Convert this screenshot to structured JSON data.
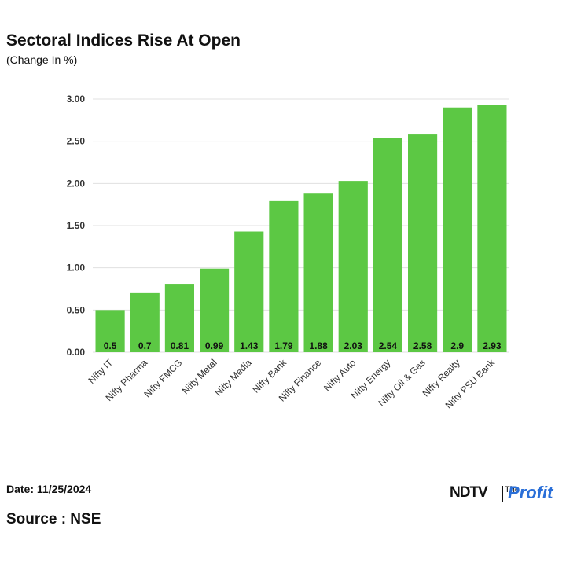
{
  "header": {
    "title": "Sectoral Indices Rise At Open",
    "subtitle": "(Change In %)"
  },
  "footer": {
    "date": "Date: 11/25/2024",
    "source": "Source : NSE",
    "logo_ndtv": "NDTV",
    "logo_small": "The",
    "logo_profit": "Profit"
  },
  "colors": {
    "bar": "#5cc844",
    "grid": "#e0e0e0"
  },
  "chart_data": {
    "type": "bar",
    "title": "Sectoral Indices Rise At Open",
    "subtitle": "(Change In %)",
    "xlabel": "",
    "ylabel": "",
    "categories": [
      "Nifty IT",
      "Nifty Pharma",
      "Nifty FMCG",
      "Nifty Metal",
      "Nifty Media",
      "Nifty Bank",
      "Nifty Finance",
      "Nifty Auto",
      "Nifty Energy",
      "Nifty Oil & Gas",
      "Nifty Realty",
      "Nifty PSU Bank"
    ],
    "values": [
      0.5,
      0.7,
      0.81,
      0.99,
      1.43,
      1.79,
      1.88,
      2.03,
      2.54,
      2.58,
      2.9,
      2.93
    ],
    "data_labels": [
      "0.5",
      "0.7",
      "0.81",
      "0.99",
      "1.43",
      "1.79",
      "1.88",
      "2.03",
      "2.54",
      "2.58",
      "2.9",
      "2.93"
    ],
    "ylim": [
      0,
      3
    ],
    "yticks": [
      "0.00",
      "0.50",
      "1.00",
      "1.50",
      "2.00",
      "2.50",
      "3.00"
    ],
    "ytick_values": [
      0,
      0.5,
      1,
      1.5,
      2,
      2.5,
      3
    ],
    "grid": true,
    "legend": "none"
  }
}
